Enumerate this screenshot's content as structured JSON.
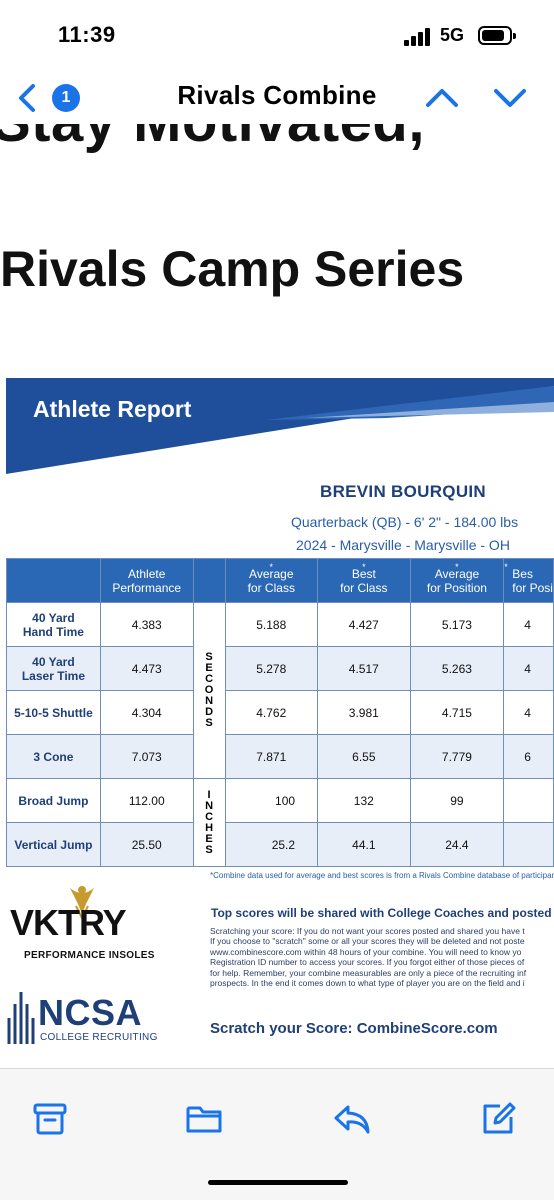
{
  "status": {
    "time": "11:39",
    "network": "5G",
    "battery_level": 0.85
  },
  "nav": {
    "unread_count": "1",
    "title": "Rivals Combine"
  },
  "article": {
    "headline_partial": "Stay Motivated,",
    "headline": "Rivals Camp Series"
  },
  "report": {
    "banner_title": "Athlete Report",
    "player": {
      "name": "BREVIN BOURQUIN",
      "position_line": "Quarterback (QB) -  6' 2\" - 184.00 lbs",
      "school_line": "2024 - Marysville  - Marysville  - OH"
    },
    "headers": [
      {
        "line1": "Athlete",
        "line2": "Performance",
        "star": false
      },
      {
        "line1": "Average",
        "line2": "for Class",
        "star": true
      },
      {
        "line1": "Best",
        "line2": "for Class",
        "star": true
      },
      {
        "line1": "Average",
        "line2": "for Position",
        "star": true
      },
      {
        "line1": "Bes",
        "line2": "for Posi",
        "star": true
      }
    ],
    "units": {
      "seconds": "SECONDS",
      "inches": "INCHES"
    },
    "rows": [
      {
        "line1": "40 Yard",
        "line2": "Hand Time",
        "athlete": "4.383",
        "avg_class": "5.188",
        "best_class": "4.427",
        "avg_pos": "5.173",
        "best_pos": "4"
      },
      {
        "line1": "40 Yard",
        "line2": "Laser Time",
        "athlete": "4.473",
        "avg_class": "5.278",
        "best_class": "4.517",
        "avg_pos": "5.263",
        "best_pos": "4"
      },
      {
        "line1": "5-10-5 Shuttle",
        "line2": "",
        "athlete": "4.304",
        "avg_class": "4.762",
        "best_class": "3.981",
        "avg_pos": "4.715",
        "best_pos": "4"
      },
      {
        "line1": "3 Cone",
        "line2": "",
        "athlete": "7.073",
        "avg_class": "7.871",
        "best_class": "6.55",
        "avg_pos": "7.779",
        "best_pos": "6"
      },
      {
        "line1": "Broad Jump",
        "line2": "",
        "athlete": "112.00",
        "avg_class": "100",
        "best_class": "132",
        "avg_pos": "99",
        "best_pos": ""
      },
      {
        "line1": "Vertical Jump",
        "line2": "",
        "athlete": "25.50",
        "avg_class": "25.2",
        "best_class": "44.1",
        "avg_pos": "24.4",
        "best_pos": ""
      }
    ],
    "footnote": "*Combine data used for average and best scores is from a Rivals Combine database of participants a",
    "sponsor1": {
      "word": "VKTRY",
      "sub": "PERFORMANCE INSOLES"
    },
    "sponsor2": {
      "word": "NCSA",
      "sub": "COLLEGE RECRUITING"
    },
    "top_scores": "Top scores will be shared with College Coaches and posted on",
    "scratch_lines": [
      "Scratching your score:  If you do not want your scores posted and shared you have t",
      "If you choose to \"scratch\" some or all your scores they will be deleted and not poste",
      "www.combinescore.com within 48 hours of your combine. You will need to know yo",
      "Registration ID number to access your scores. If you forgot either of those pieces of",
      "for help. Remember, your combine measurables are only a piece of the recruiting inf",
      "prospects. In the end it comes down to what type of player you are on the field and i"
    ],
    "scratch_cta": "Scratch your Score: CombineScore.com"
  },
  "colors": {
    "ios_blue": "#1a73e8",
    "report_navy": "#1f3f78",
    "report_blue": "#2a67b4"
  },
  "icons": [
    "back-chevron-icon",
    "chevron-up-icon",
    "chevron-down-icon",
    "archive-icon",
    "folder-icon",
    "reply-icon",
    "compose-icon"
  ]
}
